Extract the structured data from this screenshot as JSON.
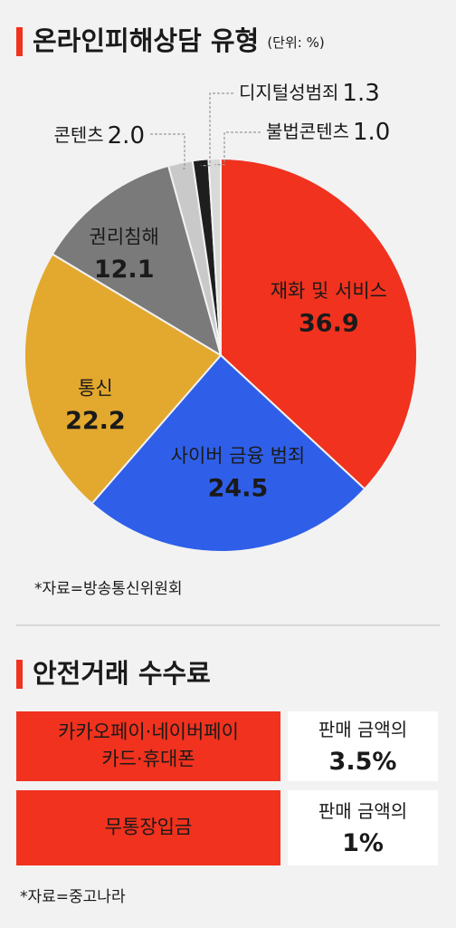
{
  "chart_data": {
    "type": "pie",
    "title": "온라인피해상담 유형",
    "unit": "(단위: %)",
    "categories": [
      "재화 및 서비스",
      "사이버 금융 범죄",
      "통신",
      "권리침해",
      "콘텐츠",
      "디지털성범죄",
      "불법콘텐츠"
    ],
    "values": [
      36.9,
      24.5,
      22.2,
      12.1,
      2.0,
      1.3,
      1.0
    ],
    "value_labels": [
      "36.9",
      "24.5",
      "22.2",
      "12.1",
      "2.0",
      "1.3",
      "1.0"
    ],
    "colors": [
      "#f0321e",
      "#2f5fe8",
      "#e3a82e",
      "#7a7a7a",
      "#c9c9c9",
      "#1e1e1e",
      "#d9d9d9"
    ],
    "source": "*자료=방송통신위원회"
  },
  "table": {
    "title": "안전거래 수수료",
    "rows": [
      {
        "method": [
          "카카오페이·네이버페이",
          "카드·휴대폰"
        ],
        "fee_label": "판매 금액의",
        "fee": "3.5%"
      },
      {
        "method": [
          "무통장입금"
        ],
        "fee_label": "판매 금액의",
        "fee": "1%"
      }
    ],
    "source": "*자료=중고나라"
  }
}
